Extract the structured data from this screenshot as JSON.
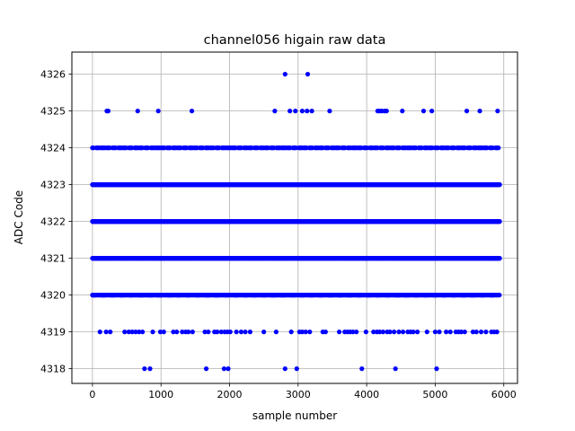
{
  "chart_data": {
    "type": "scatter",
    "title": "channel056 higain raw data",
    "xlabel": "sample number",
    "ylabel": "ADC Code",
    "xlim": [
      -300,
      6200
    ],
    "ylim": [
      4317.6,
      4326.6
    ],
    "xticks": [
      0,
      1000,
      2000,
      3000,
      4000,
      5000,
      6000
    ],
    "yticks": [
      4318,
      4319,
      4320,
      4321,
      4322,
      4323,
      4324,
      4325,
      4326
    ],
    "grid": true,
    "marker_color": "#0000ff",
    "series": [
      {
        "sparse_points": {
          "4326": [
            2810,
            3140
          ],
          "4325": [
            210,
            230,
            660,
            960,
            1450,
            2660,
            2880,
            2960,
            3060,
            3130,
            3200,
            3460,
            4160,
            4190,
            4220,
            4260,
            4290,
            4520,
            4830,
            4950,
            5460,
            5650,
            5910
          ],
          "4319": [
            110,
            200,
            260,
            470,
            530,
            580,
            630,
            680,
            730,
            880,
            990,
            1040,
            1180,
            1230,
            1310,
            1360,
            1400,
            1460,
            1640,
            1690,
            1780,
            1820,
            1880,
            1930,
            1970,
            2010,
            2100,
            2170,
            2230,
            2300,
            2500,
            2680,
            2900,
            3020,
            3060,
            3110,
            3170,
            3360,
            3400,
            3600,
            3680,
            3720,
            3760,
            3800,
            3850,
            3990,
            4100,
            4150,
            4190,
            4240,
            4300,
            4340,
            4400,
            4470,
            4530,
            4600,
            4640,
            4680,
            4740,
            4880,
            5000,
            5060,
            5160,
            5220,
            5300,
            5340,
            5380,
            5430,
            5550,
            5600,
            5670,
            5740,
            5820,
            5860,
            5900
          ],
          "4318": [
            760,
            840,
            1660,
            1920,
            1980,
            2810,
            2980,
            3930,
            4420,
            5020
          ]
        },
        "dense_levels": [
          4320,
          4321,
          4322,
          4323,
          4324
        ],
        "x_range": [
          0,
          5940
        ]
      }
    ]
  }
}
